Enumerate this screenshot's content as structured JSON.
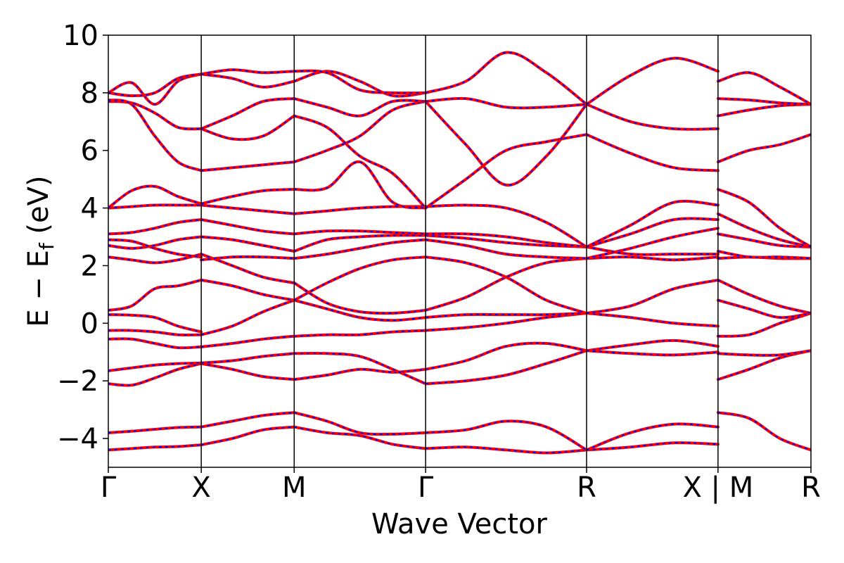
{
  "chart_data": {
    "type": "line",
    "title": "",
    "xlabel": "Wave Vector",
    "ylabel": "E − E",
    "ylabel_sub": "f",
    "ylabel_unit": " (eV)",
    "ylim": [
      -5,
      10
    ],
    "yticks": [
      -4,
      -2,
      0,
      2,
      4,
      6,
      8,
      10
    ],
    "ytick_labels": [
      "−4",
      "−2",
      "0",
      "2",
      "4",
      "6",
      "8",
      "10"
    ],
    "kpath": [
      {
        "label": "Γ",
        "x": 0.0
      },
      {
        "label": "X",
        "x": 0.5
      },
      {
        "label": "M",
        "x": 1.0
      },
      {
        "label": "Γ",
        "x": 1.7071
      },
      {
        "label": "R",
        "x": 2.5731
      },
      {
        "label": "X | M",
        "x": 3.2802
      },
      {
        "label": "R",
        "x": 3.7802
      }
    ],
    "grid": false,
    "legend": "none",
    "colors": {
      "band_primary": "#ff0000",
      "band_secondary": "#0000ff",
      "kline": "#000000"
    },
    "band_styles": [
      "red-solid",
      "blue-dashed-overlay"
    ],
    "bands": [
      {
        "segment": 0,
        "y": [
          -4.4,
          -4.35,
          -4.3,
          -4.28,
          -4.22
        ]
      },
      {
        "segment": 0,
        "y": [
          -3.8,
          -3.75,
          -3.68,
          -3.62,
          -3.6
        ]
      },
      {
        "segment": 0,
        "y": [
          -2.1,
          -2.15,
          -1.9,
          -1.6,
          -1.4
        ]
      },
      {
        "segment": 0,
        "y": [
          -1.65,
          -1.55,
          -1.45,
          -1.4,
          -1.38
        ]
      },
      {
        "segment": 0,
        "y": [
          -0.55,
          -0.55,
          -0.7,
          -0.85,
          -0.82
        ]
      },
      {
        "segment": 0,
        "y": [
          -0.25,
          -0.25,
          -0.3,
          -0.4,
          -0.4
        ]
      },
      {
        "segment": 0,
        "y": [
          0.3,
          0.28,
          0.2,
          -0.1,
          -0.3
        ]
      },
      {
        "segment": 0,
        "y": [
          0.45,
          0.6,
          1.2,
          1.3,
          1.5
        ]
      },
      {
        "segment": 0,
        "y": [
          2.3,
          2.2,
          2.1,
          2.2,
          2.4
        ]
      },
      {
        "segment": 0,
        "y": [
          2.7,
          2.6,
          2.7,
          2.9,
          3.0
        ]
      },
      {
        "segment": 0,
        "y": [
          2.9,
          2.85,
          2.6,
          2.4,
          2.3
        ]
      },
      {
        "segment": 0,
        "y": [
          3.1,
          3.15,
          3.3,
          3.5,
          3.6
        ]
      },
      {
        "segment": 0,
        "y": [
          4.0,
          4.05,
          4.1,
          4.1,
          4.1
        ]
      },
      {
        "segment": 0,
        "y": [
          4.0,
          4.6,
          4.75,
          4.4,
          4.15
        ]
      },
      {
        "segment": 0,
        "y": [
          7.7,
          7.65,
          7.3,
          6.8,
          6.75
        ]
      },
      {
        "segment": 0,
        "y": [
          7.75,
          7.6,
          6.5,
          5.6,
          5.3
        ]
      },
      {
        "segment": 0,
        "y": [
          8.0,
          8.35,
          7.6,
          8.4,
          8.65
        ]
      },
      {
        "segment": 0,
        "y": [
          8.0,
          7.9,
          8.0,
          8.5,
          8.65
        ]
      },
      {
        "segment": 1,
        "y": [
          -4.22,
          -4.0,
          -3.7,
          -3.6
        ]
      },
      {
        "segment": 1,
        "y": [
          -3.6,
          -3.4,
          -3.2,
          -3.1
        ]
      },
      {
        "segment": 1,
        "y": [
          -1.4,
          -1.6,
          -1.85,
          -1.95
        ]
      },
      {
        "segment": 1,
        "y": [
          -1.38,
          -1.3,
          -1.15,
          -1.05
        ]
      },
      {
        "segment": 1,
        "y": [
          -0.82,
          -0.7,
          -0.55,
          -0.45
        ]
      },
      {
        "segment": 1,
        "y": [
          -0.4,
          -0.1,
          0.4,
          0.8
        ]
      },
      {
        "segment": 1,
        "y": [
          1.5,
          1.3,
          1.0,
          0.8
        ]
      },
      {
        "segment": 1,
        "y": [
          2.4,
          2.0,
          1.6,
          1.4
        ]
      },
      {
        "segment": 1,
        "y": [
          2.2,
          2.3,
          2.3,
          2.25
        ]
      },
      {
        "segment": 1,
        "y": [
          3.0,
          2.9,
          2.7,
          2.5
        ]
      },
      {
        "segment": 1,
        "y": [
          3.6,
          3.4,
          3.2,
          3.1
        ]
      },
      {
        "segment": 1,
        "y": [
          4.1,
          4.0,
          3.9,
          3.8
        ]
      },
      {
        "segment": 1,
        "y": [
          4.15,
          4.4,
          4.6,
          4.65
        ]
      },
      {
        "segment": 1,
        "y": [
          5.3,
          5.4,
          5.5,
          5.6
        ]
      },
      {
        "segment": 1,
        "y": [
          6.75,
          6.4,
          6.5,
          7.2
        ]
      },
      {
        "segment": 1,
        "y": [
          6.75,
          7.2,
          7.7,
          7.8
        ]
      },
      {
        "segment": 1,
        "y": [
          8.65,
          8.8,
          8.7,
          8.75
        ]
      },
      {
        "segment": 1,
        "y": [
          8.65,
          8.5,
          8.2,
          8.4
        ]
      },
      {
        "segment": 2,
        "y": [
          -3.6,
          -3.8,
          -3.9,
          -4.2,
          -4.35
        ]
      },
      {
        "segment": 2,
        "y": [
          -3.1,
          -3.4,
          -3.8,
          -3.85,
          -3.8
        ]
      },
      {
        "segment": 2,
        "y": [
          -1.95,
          -1.8,
          -1.6,
          -1.7,
          -1.6
        ]
      },
      {
        "segment": 2,
        "y": [
          -1.05,
          -1.05,
          -1.15,
          -1.6,
          -2.1
        ]
      },
      {
        "segment": 2,
        "y": [
          -0.45,
          -0.4,
          -0.4,
          -0.3,
          -0.25
        ]
      },
      {
        "segment": 2,
        "y": [
          0.8,
          0.5,
          0.2,
          0.1,
          0.2
        ]
      },
      {
        "segment": 2,
        "y": [
          0.8,
          1.4,
          1.9,
          2.2,
          2.3
        ]
      },
      {
        "segment": 2,
        "y": [
          1.4,
          0.7,
          0.4,
          0.35,
          0.45
        ]
      },
      {
        "segment": 2,
        "y": [
          2.25,
          2.4,
          2.6,
          2.8,
          2.9
        ]
      },
      {
        "segment": 2,
        "y": [
          2.5,
          2.9,
          3.0,
          3.05,
          3.05
        ]
      },
      {
        "segment": 2,
        "y": [
          3.1,
          3.2,
          3.2,
          3.15,
          3.1
        ]
      },
      {
        "segment": 2,
        "y": [
          3.8,
          3.9,
          4.0,
          4.05,
          4.05
        ]
      },
      {
        "segment": 2,
        "y": [
          4.65,
          4.7,
          5.6,
          4.2,
          4.0
        ]
      },
      {
        "segment": 2,
        "y": [
          5.6,
          6.0,
          6.5,
          7.4,
          7.7
        ]
      },
      {
        "segment": 2,
        "y": [
          7.2,
          6.8,
          5.8,
          5.2,
          4.0
        ]
      },
      {
        "segment": 2,
        "y": [
          7.8,
          7.5,
          7.2,
          7.7,
          7.7
        ]
      },
      {
        "segment": 2,
        "y": [
          8.4,
          8.75,
          8.4,
          7.9,
          8.0
        ]
      },
      {
        "segment": 2,
        "y": [
          8.75,
          8.7,
          8.1,
          8.0,
          8.0
        ]
      },
      {
        "segment": 3,
        "y": [
          -4.35,
          -4.3,
          -4.4,
          -4.5,
          -4.4
        ]
      },
      {
        "segment": 3,
        "y": [
          -3.8,
          -3.7,
          -3.4,
          -3.6,
          -4.4
        ]
      },
      {
        "segment": 3,
        "y": [
          -2.1,
          -2.0,
          -1.8,
          -1.4,
          -0.95
        ]
      },
      {
        "segment": 3,
        "y": [
          -1.6,
          -1.3,
          -0.8,
          -0.7,
          -0.95
        ]
      },
      {
        "segment": 3,
        "y": [
          -0.25,
          -0.15,
          0.0,
          0.2,
          0.35
        ]
      },
      {
        "segment": 3,
        "y": [
          0.2,
          0.3,
          0.3,
          0.3,
          0.35
        ]
      },
      {
        "segment": 3,
        "y": [
          2.3,
          2.1,
          1.6,
          0.8,
          0.35
        ]
      },
      {
        "segment": 3,
        "y": [
          0.45,
          0.9,
          1.6,
          2.1,
          2.25
        ]
      },
      {
        "segment": 3,
        "y": [
          2.9,
          2.7,
          2.4,
          2.3,
          2.25
        ]
      },
      {
        "segment": 3,
        "y": [
          3.05,
          2.95,
          2.8,
          2.7,
          2.65
        ]
      },
      {
        "segment": 3,
        "y": [
          3.1,
          3.1,
          3.0,
          2.8,
          2.65
        ]
      },
      {
        "segment": 3,
        "y": [
          4.05,
          4.1,
          4.0,
          3.5,
          2.65
        ]
      },
      {
        "segment": 3,
        "y": [
          4.0,
          5.0,
          6.0,
          6.3,
          6.55
        ]
      },
      {
        "segment": 3,
        "y": [
          7.7,
          6.2,
          4.8,
          5.8,
          7.6
        ]
      },
      {
        "segment": 3,
        "y": [
          8.0,
          8.4,
          9.4,
          8.7,
          7.6
        ]
      },
      {
        "segment": 3,
        "y": [
          7.7,
          7.8,
          7.5,
          7.5,
          7.6
        ]
      },
      {
        "segment": 4,
        "y": [
          -4.4,
          -4.3,
          -4.15,
          -4.2
        ]
      },
      {
        "segment": 4,
        "y": [
          -4.4,
          -3.8,
          -3.5,
          -3.6
        ]
      },
      {
        "segment": 4,
        "y": [
          -0.95,
          -0.75,
          -0.6,
          -0.8
        ]
      },
      {
        "segment": 4,
        "y": [
          -0.95,
          -1.05,
          -1.1,
          -1.0
        ]
      },
      {
        "segment": 4,
        "y": [
          0.35,
          0.2,
          0.0,
          -0.1
        ]
      },
      {
        "segment": 4,
        "y": [
          0.35,
          0.6,
          1.2,
          1.5
        ]
      },
      {
        "segment": 4,
        "y": [
          2.25,
          2.3,
          2.2,
          2.3
        ]
      },
      {
        "segment": 4,
        "y": [
          2.25,
          2.6,
          3.0,
          3.3
        ]
      },
      {
        "segment": 4,
        "y": [
          2.65,
          2.4,
          2.4,
          2.4
        ]
      },
      {
        "segment": 4,
        "y": [
          2.65,
          3.1,
          3.6,
          3.6
        ]
      },
      {
        "segment": 4,
        "y": [
          2.65,
          3.4,
          4.2,
          4.1
        ]
      },
      {
        "segment": 4,
        "y": [
          6.55,
          5.9,
          5.4,
          5.3
        ]
      },
      {
        "segment": 4,
        "y": [
          7.6,
          7.0,
          6.75,
          6.75
        ]
      },
      {
        "segment": 4,
        "y": [
          7.6,
          8.6,
          9.2,
          8.75
        ]
      },
      {
        "segment": 5,
        "y": [
          -3.1,
          -3.3,
          -4.0,
          -4.4
        ]
      },
      {
        "segment": 5,
        "y": [
          -1.95,
          -1.6,
          -1.2,
          -0.95
        ]
      },
      {
        "segment": 5,
        "y": [
          -1.05,
          -1.1,
          -1.1,
          -0.95
        ]
      },
      {
        "segment": 5,
        "y": [
          -0.45,
          -0.4,
          0.0,
          0.35
        ]
      },
      {
        "segment": 5,
        "y": [
          0.8,
          0.5,
          0.2,
          0.35
        ]
      },
      {
        "segment": 5,
        "y": [
          1.5,
          1.0,
          0.6,
          0.35
        ]
      },
      {
        "segment": 5,
        "y": [
          2.25,
          2.3,
          2.25,
          2.25
        ]
      },
      {
        "segment": 5,
        "y": [
          2.5,
          2.3,
          2.3,
          2.25
        ]
      },
      {
        "segment": 5,
        "y": [
          3.1,
          2.9,
          2.7,
          2.65
        ]
      },
      {
        "segment": 5,
        "y": [
          3.8,
          3.3,
          2.9,
          2.65
        ]
      },
      {
        "segment": 5,
        "y": [
          4.65,
          4.2,
          3.3,
          2.65
        ]
      },
      {
        "segment": 5,
        "y": [
          5.6,
          6.0,
          6.2,
          6.55
        ]
      },
      {
        "segment": 5,
        "y": [
          7.2,
          7.4,
          7.55,
          7.6
        ]
      },
      {
        "segment": 5,
        "y": [
          7.8,
          7.75,
          7.65,
          7.6
        ]
      },
      {
        "segment": 5,
        "y": [
          8.4,
          8.7,
          8.2,
          7.6
        ]
      }
    ]
  }
}
